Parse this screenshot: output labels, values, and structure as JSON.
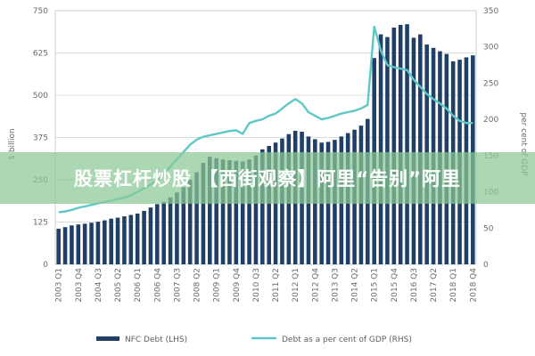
{
  "watermark": {
    "text": "股票杠杆炒股 【西街观察】阿里“告别”阿里"
  },
  "chart_data": {
    "type": "bar+line",
    "categories": [
      "2003 Q1",
      "2003 Q2",
      "2003 Q3",
      "2003 Q4",
      "2004 Q1",
      "2004 Q2",
      "2004 Q3",
      "2004 Q4",
      "2005 Q1",
      "2005 Q2",
      "2005 Q3",
      "2005 Q4",
      "2006 Q1",
      "2006 Q2",
      "2006 Q3",
      "2006 Q4",
      "2007 Q1",
      "2007 Q2",
      "2007 Q3",
      "2007 Q4",
      "2008 Q1",
      "2008 Q2",
      "2008 Q3",
      "2008 Q4",
      "2009 Q1",
      "2009 Q2",
      "2009 Q3",
      "2009 Q4",
      "2010 Q1",
      "2010 Q2",
      "2010 Q3",
      "2010 Q4",
      "2011 Q1",
      "2011 Q2",
      "2011 Q3",
      "2011 Q4",
      "2012 Q1",
      "2012 Q2",
      "2012 Q3",
      "2012 Q4",
      "2013 Q1",
      "2013 Q2",
      "2013 Q3",
      "2013 Q4",
      "2014 Q1",
      "2014 Q2",
      "2014 Q3",
      "2014 Q4",
      "2015 Q1",
      "2015 Q2",
      "2015 Q3",
      "2015 Q4",
      "2016 Q1",
      "2016 Q2",
      "2016 Q3",
      "2016 Q4",
      "2017 Q1",
      "2017 Q2",
      "2017 Q3",
      "2017 Q4",
      "2018 Q1",
      "2018 Q2",
      "2018 Q3",
      "2018 Q4"
    ],
    "tick_labels": [
      "2003 Q1",
      "2003 Q4",
      "2004 Q3",
      "2005 Q2",
      "2006 Q1",
      "2006 Q4",
      "2007 Q3",
      "2008 Q2",
      "2009 Q1",
      "2009 Q4",
      "2010 Q3",
      "2011 Q2",
      "2012 Q1",
      "2012 Q4",
      "2013 Q3",
      "2014 Q2",
      "2015 Q1",
      "2015 Q4",
      "2016 Q3",
      "2017 Q2",
      "2018 Q1",
      "2018 Q4"
    ],
    "series": [
      {
        "name": "NFC Debt (LHS)",
        "axis": "left",
        "kind": "bar",
        "color": "#1f3f66",
        "values": [
          105,
          110,
          115,
          118,
          120,
          123,
          126,
          130,
          135,
          138,
          142,
          146,
          150,
          158,
          168,
          178,
          185,
          198,
          212,
          228,
          250,
          272,
          300,
          318,
          314,
          310,
          308,
          306,
          304,
          310,
          322,
          340,
          350,
          360,
          372,
          385,
          395,
          392,
          378,
          370,
          360,
          362,
          368,
          378,
          388,
          398,
          410,
          430,
          610,
          680,
          672,
          700,
          708,
          710,
          670,
          680,
          650,
          640,
          630,
          622,
          600,
          605,
          612,
          618
        ]
      },
      {
        "name": "Debt as a per cent of GDP (RHS)",
        "axis": "right",
        "kind": "line",
        "color": "#5ec8c8",
        "values": [
          72,
          73,
          75,
          78,
          80,
          82,
          84,
          86,
          88,
          90,
          92,
          95,
          100,
          105,
          110,
          116,
          125,
          135,
          145,
          155,
          165,
          172,
          176,
          178,
          180,
          182,
          184,
          185,
          180,
          195,
          198,
          200,
          205,
          208,
          215,
          222,
          228,
          222,
          210,
          205,
          200,
          202,
          205,
          208,
          210,
          212,
          215,
          220,
          328,
          295,
          275,
          272,
          270,
          268,
          255,
          245,
          235,
          228,
          222,
          215,
          205,
          198,
          195,
          195
        ]
      }
    ],
    "y_left": {
      "label": "$ billion",
      "min": 0,
      "max": 750,
      "ticks": [
        0,
        125,
        250,
        375,
        500,
        625,
        750
      ]
    },
    "y_right": {
      "label": "per cent of GDP",
      "min": 0,
      "max": 350,
      "ticks": [
        0,
        50,
        100,
        150,
        200,
        250,
        300,
        350
      ]
    },
    "legend": {
      "position": "bottom"
    },
    "grid": true
  }
}
